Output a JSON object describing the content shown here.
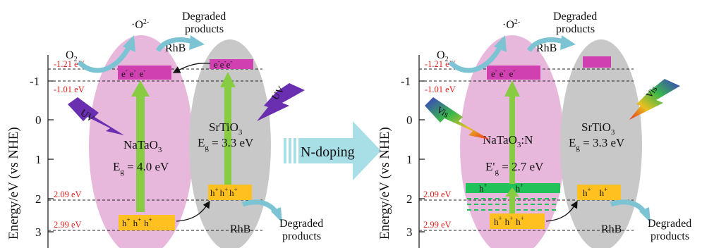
{
  "diagram": {
    "axis_label": "Energy/eV (vs NHE)",
    "ticks": [
      "-1",
      "0",
      "1",
      "2",
      "3"
    ],
    "arrow_label": "N-doping",
    "left_panel": {
      "levels": [
        "-1.21 eV",
        "-1.01 eV",
        "2.09 eV",
        "2.99 eV"
      ],
      "material_a": "NaTaO",
      "material_a_sub": "3",
      "gap_a_prefix": "E",
      "gap_a_sub": "g",
      "gap_a_value": " = 4.0 eV",
      "material_b": "SrTiO",
      "material_b_sub": "3",
      "gap_b_prefix": "E",
      "gap_b_sub": "g",
      "gap_b_value": " = 3.3 eV",
      "light": "UV",
      "o2": "O",
      "o2_sub": "2",
      "superoxide": "·O",
      "superoxide_sup": "2-",
      "rhb_top": "RhB",
      "rhb_bottom": "RhB",
      "degraded_top_1": "Degraded",
      "degraded_top_2": "products",
      "degraded_bottom_1": "Degraded",
      "degraded_bottom_2": "products",
      "electron": "e",
      "hole": "h"
    },
    "right_panel": {
      "levels": [
        "-1.21 eV",
        "-1.01 eV",
        "2.09 eV",
        "2.99 eV"
      ],
      "material_a": "NaTaO",
      "material_a_sub": "3",
      "material_a_suffix": ":N",
      "gap_a_prefix": "E'",
      "gap_a_sub": "g",
      "gap_a_value": " = 2.7 eV",
      "material_b": "SrTiO",
      "material_b_sub": "3",
      "gap_b_prefix": "E",
      "gap_b_sub": "g",
      "gap_b_value": " = 3.3 eV",
      "light": "Vis",
      "o2": "O",
      "o2_sub": "2",
      "superoxide": "·O",
      "superoxide_sup": "2-",
      "rhb_top": "RhB",
      "rhb_bottom": "RhB",
      "degraded_top_1": "Degraded",
      "degraded_top_2": "products",
      "degraded_bottom_1": "Degraded",
      "degraded_bottom_2": "products",
      "electron": "e",
      "hole": "h"
    },
    "colors": {
      "natao3_ellipse": "#e8b8dc",
      "srtio3_ellipse": "#c8c8c8",
      "cb_band": "#d040b0",
      "vb_band": "#ffc020",
      "excitation_arrow": "#88cc44",
      "n_level_band": "#22c25a",
      "level_text": "#e0201c",
      "curved_arrow": "#7cc4d4",
      "doping_arrow": "#a8dee6",
      "uv_bolt": "#6a2fb0"
    }
  }
}
